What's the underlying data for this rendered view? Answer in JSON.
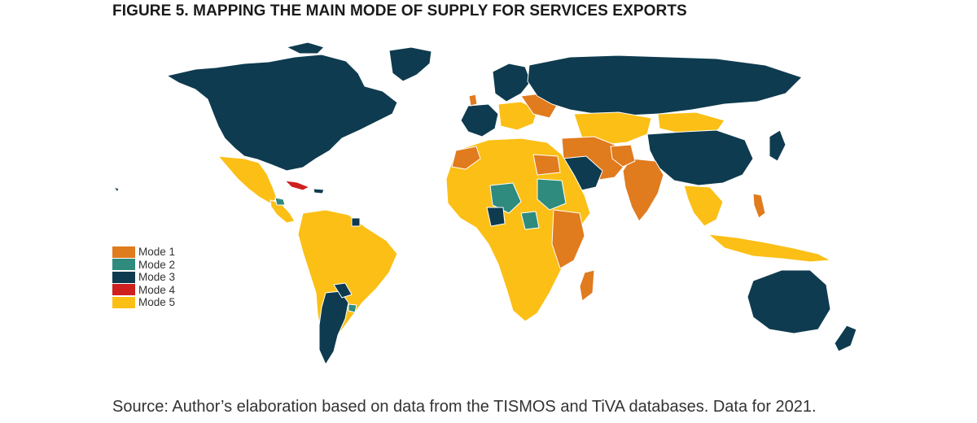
{
  "figure": {
    "title": "FIGURE 5. MAPPING THE MAIN MODE OF SUPPLY FOR SERVICES EXPORTS",
    "source": "Source: Author’s elaboration based on data from the TISMOS and TiVA databases. Data for 2021."
  },
  "legend": {
    "items": [
      {
        "label": "Mode 1",
        "color": "#e07b1e"
      },
      {
        "label": "Mode 2",
        "color": "#2e8b7e"
      },
      {
        "label": "Mode 3",
        "color": "#0e3b4f"
      },
      {
        "label": "Mode 4",
        "color": "#cf1f1f"
      },
      {
        "label": "Mode 5",
        "color": "#fbbf16"
      }
    ]
  },
  "map_style": {
    "border_color": "#ffffff",
    "background": "#ffffff"
  }
}
